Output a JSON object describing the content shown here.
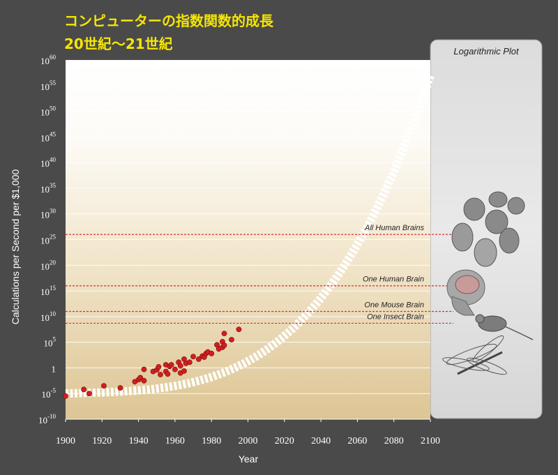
{
  "title": {
    "line1": "コンピューターの指数関数的成長",
    "line2": "20世紀〜21世紀"
  },
  "chart_data": {
    "type": "scatter",
    "xlabel": "Year",
    "ylabel": "Calculations per Second per $1,000",
    "xlim": [
      1900,
      2100
    ],
    "ylim_log10": [
      -10,
      60
    ],
    "y_scale": "log",
    "x_ticks": [
      "1900",
      "1920",
      "1940",
      "1960",
      "1980",
      "2000",
      "2020",
      "2040",
      "2060",
      "2080",
      "2100"
    ],
    "y_ticks": [
      {
        "exp": -10,
        "base": "10",
        "sup": "-10"
      },
      {
        "exp": -5,
        "base": "10",
        "sup": "-5"
      },
      {
        "exp": 0,
        "base": "1",
        "sup": ""
      },
      {
        "exp": 5,
        "base": "10",
        "sup": "5"
      },
      {
        "exp": 10,
        "base": "10",
        "sup": "10"
      },
      {
        "exp": 15,
        "base": "10",
        "sup": "15"
      },
      {
        "exp": 20,
        "base": "10",
        "sup": "20"
      },
      {
        "exp": 25,
        "base": "10",
        "sup": "25"
      },
      {
        "exp": 30,
        "base": "10",
        "sup": "30"
      },
      {
        "exp": 35,
        "base": "10",
        "sup": "35"
      },
      {
        "exp": 40,
        "base": "10",
        "sup": "40"
      },
      {
        "exp": 45,
        "base": "10",
        "sup": "45"
      },
      {
        "exp": 50,
        "base": "10",
        "sup": "50"
      },
      {
        "exp": 55,
        "base": "10",
        "sup": "55"
      },
      {
        "exp": 60,
        "base": "10",
        "sup": "60"
      }
    ],
    "points": [
      {
        "x": 1900,
        "y": -5.5
      },
      {
        "x": 1910,
        "y": -4.2
      },
      {
        "x": 1913,
        "y": -5.0
      },
      {
        "x": 1921,
        "y": -3.5
      },
      {
        "x": 1930,
        "y": -3.9
      },
      {
        "x": 1938,
        "y": -2.7
      },
      {
        "x": 1940,
        "y": -2.3
      },
      {
        "x": 1941,
        "y": -1.9
      },
      {
        "x": 1943,
        "y": -2.5
      },
      {
        "x": 1943,
        "y": -0.3
      },
      {
        "x": 1948,
        "y": -0.7
      },
      {
        "x": 1950,
        "y": -0.4
      },
      {
        "x": 1951,
        "y": 0.2
      },
      {
        "x": 1952,
        "y": -1.3
      },
      {
        "x": 1955,
        "y": -0.7
      },
      {
        "x": 1955,
        "y": 0.6
      },
      {
        "x": 1956,
        "y": -1.2
      },
      {
        "x": 1957,
        "y": 0.3
      },
      {
        "x": 1958,
        "y": 0.6
      },
      {
        "x": 1960,
        "y": -0.3
      },
      {
        "x": 1962,
        "y": 1.1
      },
      {
        "x": 1963,
        "y": -1.0
      },
      {
        "x": 1963,
        "y": 0.4
      },
      {
        "x": 1965,
        "y": -0.6
      },
      {
        "x": 1965,
        "y": 1.7
      },
      {
        "x": 1966,
        "y": 0.9
      },
      {
        "x": 1968,
        "y": 1.1
      },
      {
        "x": 1970,
        "y": 2.2
      },
      {
        "x": 1973,
        "y": 1.7
      },
      {
        "x": 1975,
        "y": 2.3
      },
      {
        "x": 1976,
        "y": 2.1
      },
      {
        "x": 1977,
        "y": 2.8
      },
      {
        "x": 1978,
        "y": 3.1
      },
      {
        "x": 1980,
        "y": 2.8
      },
      {
        "x": 1983,
        "y": 4.5
      },
      {
        "x": 1984,
        "y": 3.7
      },
      {
        "x": 1986,
        "y": 4.0
      },
      {
        "x": 1986,
        "y": 5.1
      },
      {
        "x": 1987,
        "y": 4.4
      },
      {
        "x": 1987,
        "y": 6.7
      },
      {
        "x": 1991,
        "y": 5.5
      },
      {
        "x": 1995,
        "y": 7.5
      }
    ],
    "trend": {
      "x_start": 1900,
      "x_end": 2100
    },
    "reference_lines": [
      {
        "label": "All Human Brains",
        "exp": 26
      },
      {
        "label": "One Human Brain",
        "exp": 16
      },
      {
        "label": "One Mouse Brain",
        "exp": 11
      },
      {
        "label": "One Insect Brain",
        "exp": 8.7
      }
    ],
    "colors": {
      "points": "#d11f1f",
      "reference": "#d83030",
      "trend": "#ffffff"
    }
  },
  "side_panel": {
    "title": "Logarithmic Plot",
    "images": [
      "human-crowd-image",
      "human-head-image",
      "mouse-image",
      "dragonfly-image"
    ]
  }
}
